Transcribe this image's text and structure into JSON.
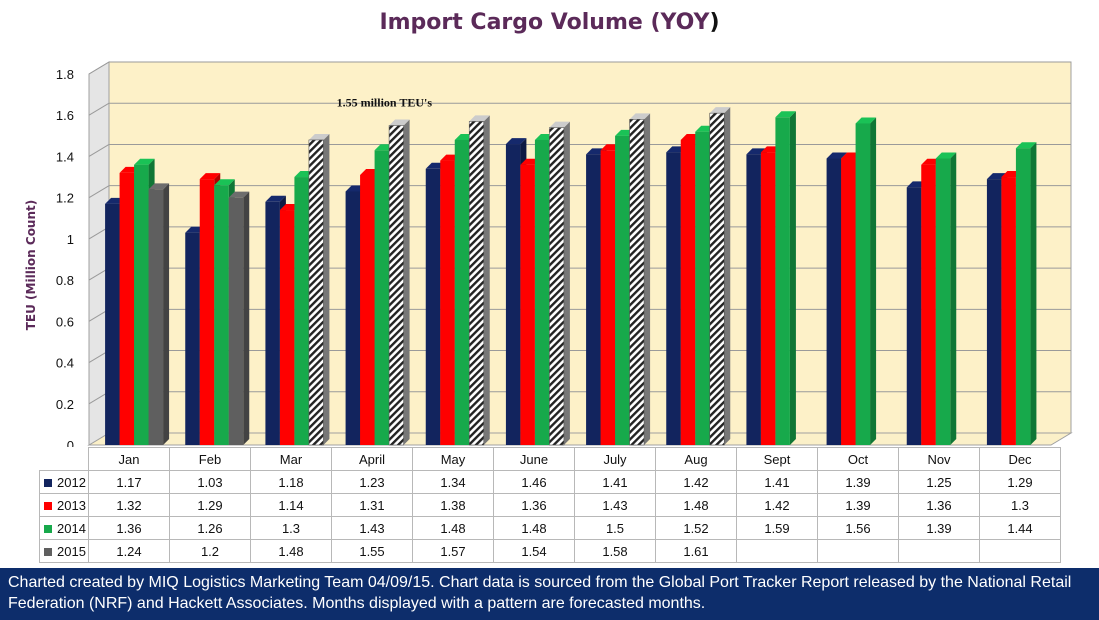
{
  "chart_data": {
    "type": "bar",
    "title": "Import Cargo Volume (YOY",
    "title_paren": ")",
    "ylabel": "TEU (Million Count)",
    "ylim": [
      0,
      1.8
    ],
    "yticks": [
      "0",
      "0.2",
      "0.4",
      "0.6",
      "0.8",
      "1",
      "1.2",
      "1.4",
      "1.6",
      "1.8"
    ],
    "categories": [
      "Jan",
      "Feb",
      "Mar",
      "April",
      "May",
      "June",
      "July",
      "Aug",
      "Sept",
      "Oct",
      "Nov",
      "Dec"
    ],
    "series": [
      {
        "name": "2012",
        "color": "#12245e",
        "values": [
          "1.17",
          "1.03",
          "1.18",
          "1.23",
          "1.34",
          "1.46",
          "1.41",
          "1.42",
          "1.41",
          "1.39",
          "1.25",
          "1.29"
        ],
        "forecast": [
          false,
          false,
          false,
          false,
          false,
          false,
          false,
          false,
          false,
          false,
          false,
          false
        ]
      },
      {
        "name": "2013",
        "color": "#ff0000",
        "values": [
          "1.32",
          "1.29",
          "1.14",
          "1.31",
          "1.38",
          "1.36",
          "1.43",
          "1.48",
          "1.42",
          "1.39",
          "1.36",
          "1.3"
        ],
        "forecast": [
          false,
          false,
          false,
          false,
          false,
          false,
          false,
          false,
          false,
          false,
          false,
          false
        ]
      },
      {
        "name": "2014",
        "color": "#17a94b",
        "values": [
          "1.36",
          "1.26",
          "1.3",
          "1.43",
          "1.48",
          "1.48",
          "1.5",
          "1.52",
          "1.59",
          "1.56",
          "1.39",
          "1.44"
        ],
        "forecast": [
          false,
          false,
          false,
          false,
          false,
          false,
          false,
          false,
          false,
          false,
          false,
          false
        ]
      },
      {
        "name": "2015",
        "color": "#5f5f5f",
        "values": [
          "1.24",
          "1.2",
          "1.48",
          "1.55",
          "1.57",
          "1.54",
          "1.58",
          "1.61",
          "",
          "",
          "",
          ""
        ],
        "forecast": [
          false,
          false,
          true,
          true,
          true,
          true,
          true,
          true,
          false,
          false,
          false,
          false
        ]
      }
    ],
    "annotation": {
      "text": "1.55 million TEU's",
      "category": "April",
      "series": "2015"
    },
    "plot_background": "#fdf1c8",
    "grid": true,
    "legend": "data-table"
  },
  "footer": {
    "text": "Charted created by MIQ Logistics Marketing Team 04/09/15. Chart data is sourced from the Global Port Tracker Report released by the National Retail Federation (NRF) and Hackett Associates. Months displayed with a pattern are forecasted months."
  }
}
